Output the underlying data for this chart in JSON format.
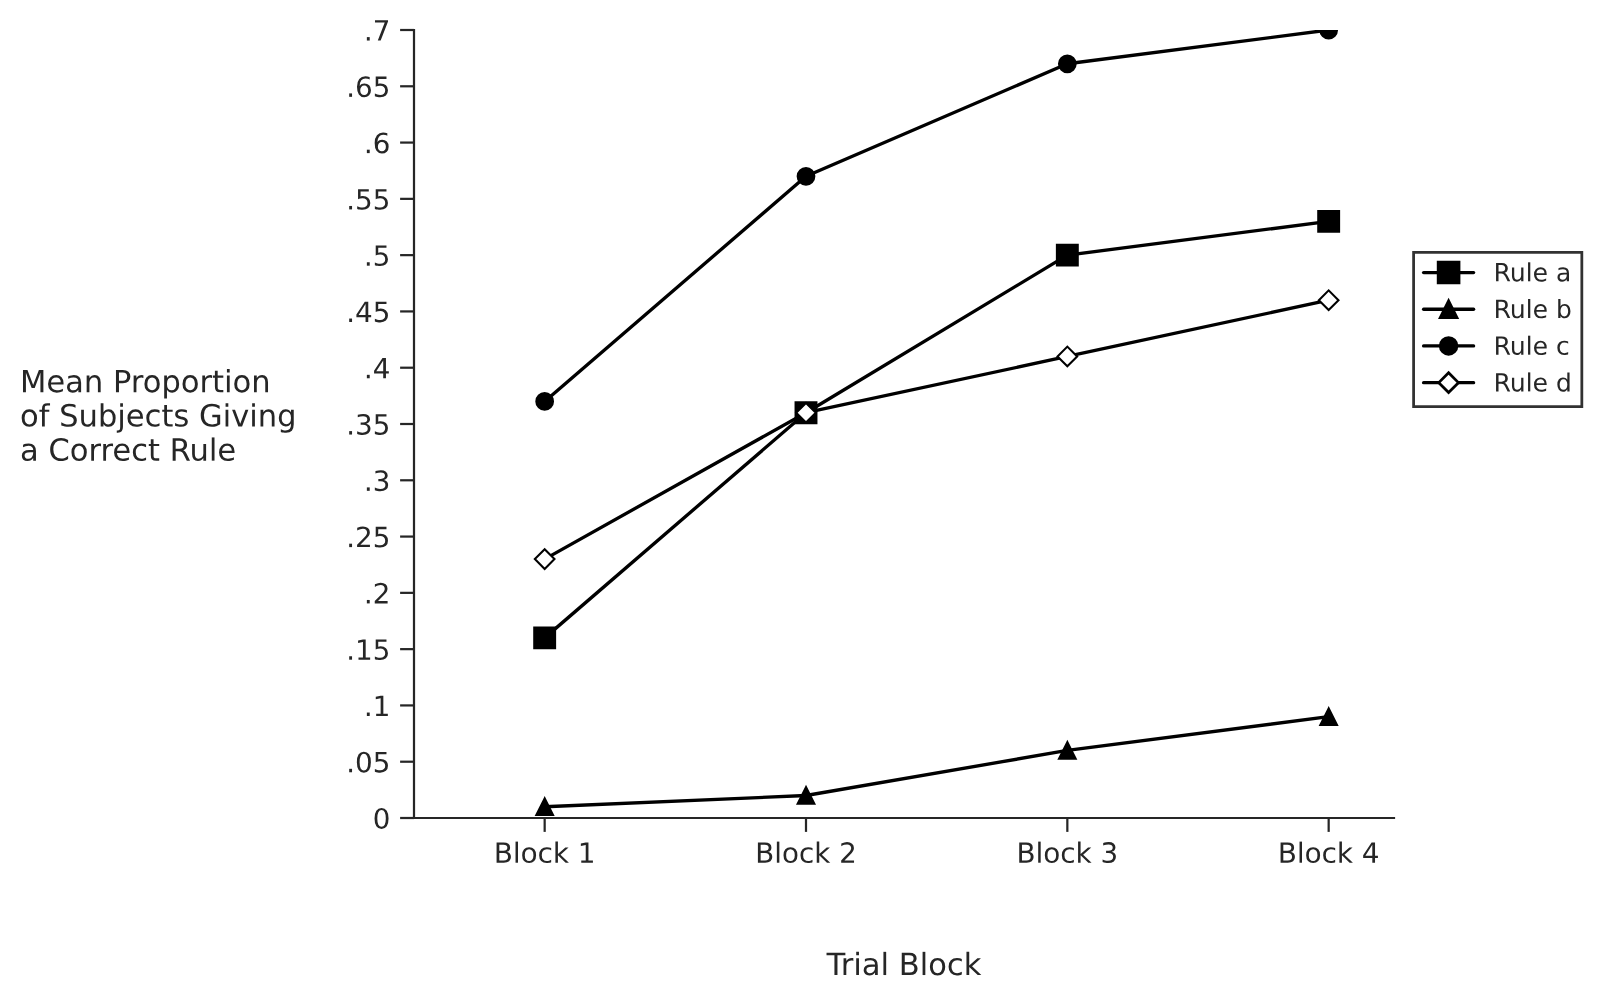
{
  "chart_data": {
    "type": "line",
    "xlabel": "Trial Block",
    "ylabel": "Mean Proportion\nof Subjects Giving\na Correct Rule",
    "categories": [
      "Block 1",
      "Block 2",
      "Block 3",
      "Block 4"
    ],
    "series": [
      {
        "name": "Rule a",
        "color": "#000000",
        "marker": "square",
        "values": [
          0.16,
          0.36,
          0.5,
          0.53
        ]
      },
      {
        "name": "Rule b",
        "color": "#000000",
        "marker": "triangle",
        "values": [
          0.01,
          0.02,
          0.06,
          0.09
        ]
      },
      {
        "name": "Rule c",
        "color": "#000000",
        "marker": "circle",
        "values": [
          0.37,
          0.57,
          0.67,
          0.7
        ]
      },
      {
        "name": "Rule d",
        "color": "#000000",
        "marker": "diamond",
        "values": [
          0.23,
          0.36,
          0.41,
          0.46
        ]
      }
    ],
    "ylim": [
      0,
      0.7
    ],
    "yticks": [
      0,
      {
        "value": 0.05,
        "label": ".05"
      },
      {
        "value": 0.1,
        "label": ".1"
      },
      {
        "value": 0.15,
        "label": ".15"
      },
      {
        "value": 0.2,
        "label": ".2"
      },
      {
        "value": 0.25,
        "label": ".25"
      },
      {
        "value": 0.3,
        "label": ".3"
      },
      {
        "value": 0.35,
        "label": ".35"
      },
      {
        "value": 0.4,
        "label": ".4"
      },
      {
        "value": 0.45,
        "label": ".45"
      },
      {
        "value": 0.5,
        "label": ".5"
      },
      {
        "value": 0.55,
        "label": ".55"
      },
      {
        "value": 0.6,
        "label": ".6"
      },
      {
        "value": 0.65,
        "label": ".65"
      },
      {
        "value": 0.7,
        "label": ".7"
      }
    ],
    "grid": false,
    "legend": "right",
    "line_style": "solid"
  }
}
